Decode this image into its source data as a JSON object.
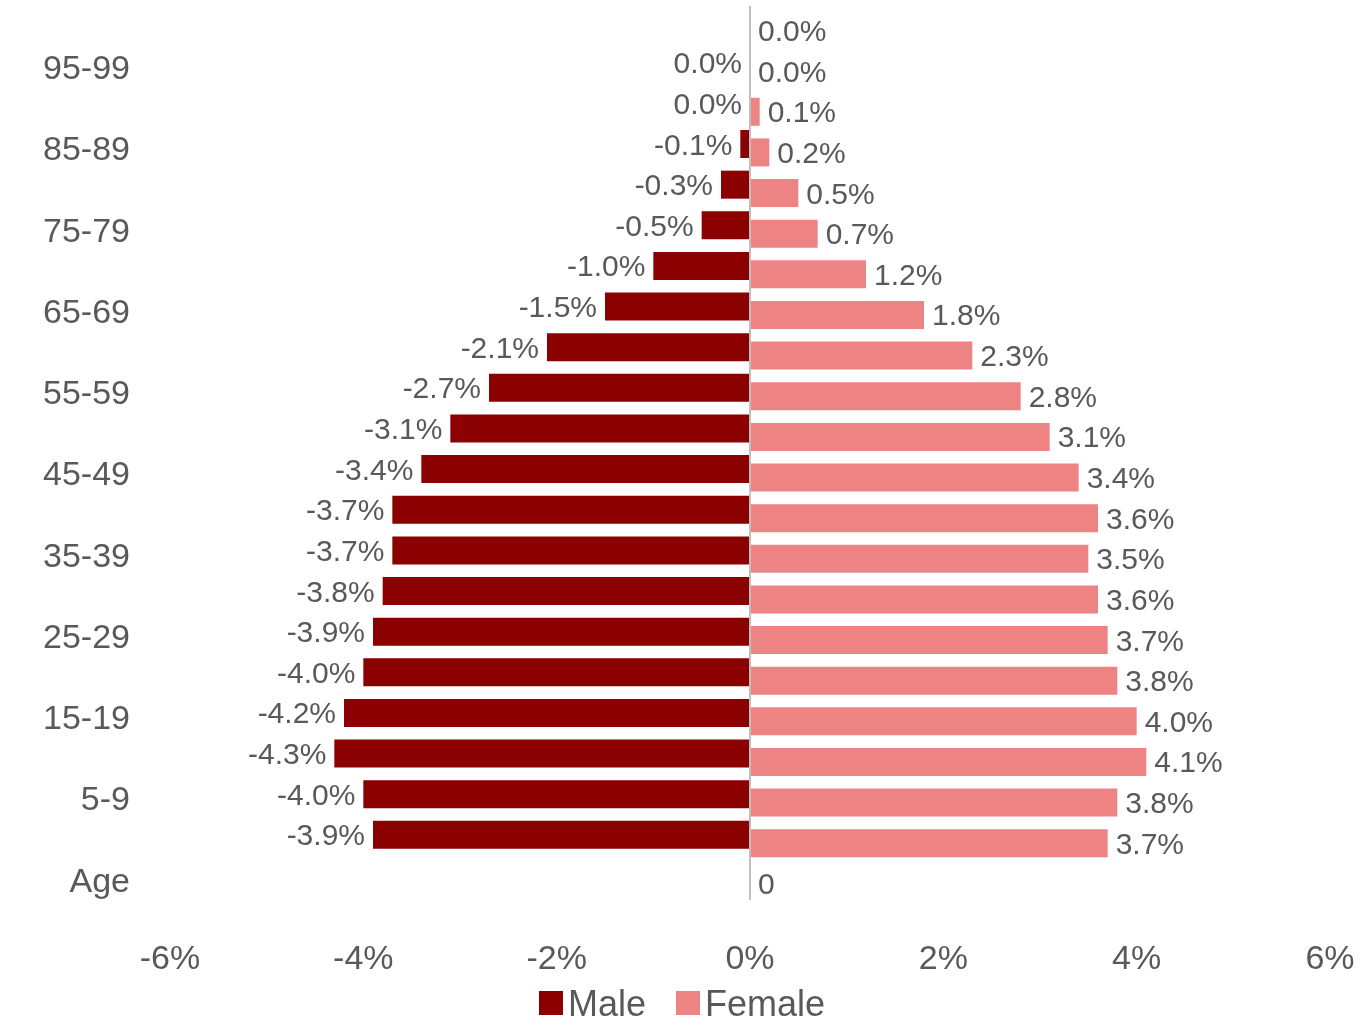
{
  "chart_data": {
    "type": "bar",
    "orientation": "horizontal",
    "categories": [
      null,
      "95-99",
      null,
      "85-89",
      null,
      "75-79",
      null,
      "65-69",
      null,
      "55-59",
      null,
      "45-49",
      null,
      "35-39",
      null,
      "25-29",
      null,
      "15-19",
      null,
      "5-9",
      null,
      "Age"
    ],
    "series": [
      {
        "name": "Male",
        "color": "#8b0000",
        "values": [
          null,
          0.0,
          0.0,
          -0.1,
          -0.3,
          -0.5,
          -1.0,
          -1.5,
          -2.1,
          -2.7,
          -3.1,
          -3.4,
          -3.7,
          -3.7,
          -3.8,
          -3.9,
          -4.0,
          -4.2,
          -4.3,
          -4.0,
          -3.9,
          null
        ],
        "value_labels": [
          null,
          "0.0%",
          "0.0%",
          "-0.1%",
          "-0.3%",
          "-0.5%",
          "-1.0%",
          "-1.5%",
          "-2.1%",
          "-2.7%",
          "-3.1%",
          "-3.4%",
          "-3.7%",
          "-3.7%",
          "-3.8%",
          "-3.9%",
          "-4.0%",
          "-4.2%",
          "-4.3%",
          "-4.0%",
          "-3.9%",
          null
        ]
      },
      {
        "name": "Female",
        "color": "#ee8383",
        "values": [
          0.0,
          0.0,
          0.1,
          0.2,
          0.5,
          0.7,
          1.2,
          1.8,
          2.3,
          2.8,
          3.1,
          3.4,
          3.6,
          3.5,
          3.6,
          3.7,
          3.8,
          4.0,
          4.1,
          3.8,
          3.7,
          0
        ],
        "value_labels": [
          "0.0%",
          "0.0%",
          "0.1%",
          "0.2%",
          "0.5%",
          "0.7%",
          "1.2%",
          "1.8%",
          "2.3%",
          "2.8%",
          "3.1%",
          "3.4%",
          "3.6%",
          "3.5%",
          "3.6%",
          "3.7%",
          "3.8%",
          "4.0%",
          "4.1%",
          "3.8%",
          "3.7%",
          "0"
        ]
      }
    ],
    "xlim": [
      -6,
      6
    ],
    "xticks": [
      {
        "value": -6,
        "label": "-6%"
      },
      {
        "value": -4,
        "label": "-4%"
      },
      {
        "value": -2,
        "label": "-2%"
      },
      {
        "value": 0,
        "label": "0%"
      },
      {
        "value": 2,
        "label": "2%"
      },
      {
        "value": 4,
        "label": "4%"
      },
      {
        "value": 6,
        "label": "6%"
      }
    ],
    "ref_lines": [
      {
        "axis": "x",
        "value": 0,
        "color": "#bfbfbf"
      }
    ],
    "grid": false,
    "legend": "bottom"
  }
}
